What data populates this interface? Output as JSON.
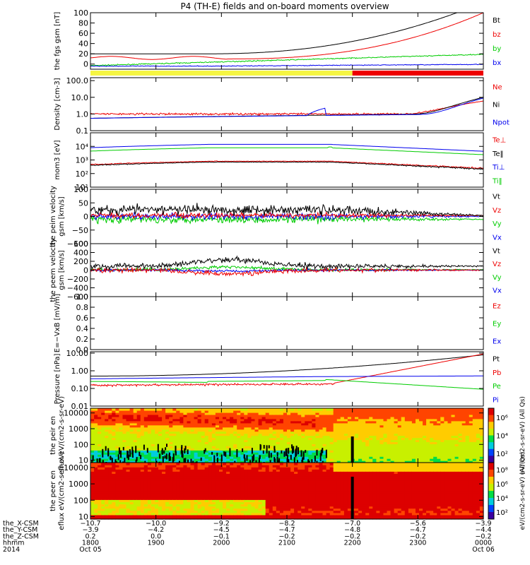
{
  "title": "P4 (TH-E) fields and on-board moments overview",
  "colors": {
    "black": "#000000",
    "red": "#ee0000",
    "green": "#00cc00",
    "blue": "#0000ee",
    "yellow": "#f5f542"
  },
  "status_bar": {
    "yellow_until": "2200",
    "red_from": "2200"
  },
  "chart_data": [
    {
      "type": "line",
      "ylabel": "the fgs gsm [nT]",
      "ylim": [
        -10,
        100
      ],
      "yticks": [
        "100",
        "80",
        "60",
        "40",
        "20",
        "0"
      ],
      "series": [
        {
          "name": "Bt"
        },
        {
          "name": "bz"
        },
        {
          "name": "by"
        },
        {
          "name": "bx"
        }
      ]
    },
    {
      "type": "line",
      "ylabel": "Density [cm-3]",
      "scale": "log",
      "ylim": [
        0.1,
        150
      ],
      "yticks": [
        "100.0",
        "10.0",
        "1.0",
        "0.1"
      ],
      "series": [
        {
          "name": "Ne"
        },
        {
          "name": "Ni"
        },
        {
          "name": "Npot"
        }
      ]
    },
    {
      "type": "line",
      "ylabel": "mom3 [eV]",
      "scale": "log",
      "ylim": [
        10,
        100000
      ],
      "yticks": [
        "10⁴",
        "10³",
        "10²",
        "10¹"
      ],
      "series": [
        {
          "name": "Te⊥"
        },
        {
          "name": "Te‖"
        },
        {
          "name": "Ti⊥"
        },
        {
          "name": "Ti‖"
        }
      ]
    },
    {
      "type": "line",
      "ylabel": "the peim velocity gsm [km/s]",
      "ylim": [
        -100,
        100
      ],
      "yticks": [
        "100",
        "50",
        "0",
        "−50",
        "−100"
      ],
      "series": [
        {
          "name": "Vt"
        },
        {
          "name": "Vz"
        },
        {
          "name": "Vy"
        },
        {
          "name": "Vx"
        }
      ]
    },
    {
      "type": "line",
      "ylabel": "the peem velocity gsm [km/s]",
      "ylim": [
        -600,
        600
      ],
      "yticks": [
        "600",
        "400",
        "200",
        "0",
        "−200",
        "−400",
        "−600"
      ],
      "series": [
        {
          "name": "Vt"
        },
        {
          "name": "Vz"
        },
        {
          "name": "Vy"
        },
        {
          "name": "Vx"
        }
      ]
    },
    {
      "type": "line",
      "ylabel": "E=−VxB [mV/m]",
      "ylim": [
        0,
        1
      ],
      "yticks": [
        "1.0",
        "0.8",
        "0.6",
        "0.4",
        "0.2",
        "0.0"
      ],
      "series": [
        {
          "name": "Ez"
        },
        {
          "name": "Ey"
        },
        {
          "name": "Ex"
        }
      ]
    },
    {
      "type": "line",
      "ylabel": "Pressure [nPa]",
      "scale": "log",
      "ylim": [
        0.01,
        12
      ],
      "yticks": [
        "10.00",
        "1.00",
        "0.10",
        "0.01"
      ],
      "series": [
        {
          "name": "Pt"
        },
        {
          "name": "Pb"
        },
        {
          "name": "Pe"
        },
        {
          "name": "Pi"
        }
      ]
    },
    {
      "type": "heatmap",
      "ylabel": "the peir en eflux eV/(cm2-s-sr-eV)",
      "scale": "log",
      "ylim": [
        7,
        20000
      ],
      "yticks": [
        "10000",
        "1000",
        "100",
        "10"
      ],
      "colorbar_label": "eV/(cm2-s-sr-eV) (All Qs)",
      "colorbar_ticks": [
        "10⁶",
        "10⁴",
        "10²"
      ]
    },
    {
      "type": "heatmap",
      "ylabel": "the peer en eflux eV/(cm2-s-sr-eV)",
      "scale": "log",
      "ylim": [
        7,
        20000
      ],
      "yticks": [
        "10000",
        "1000",
        "100",
        "10"
      ],
      "colorbar_label": "eV/(cm2-s-sr-eV) (All Qs)",
      "colorbar_ticks": [
        "10⁸",
        "10⁶",
        "10⁴",
        "10²"
      ]
    }
  ],
  "footer": {
    "rows": [
      {
        "label": "the_X-CSM",
        "values": [
          "−10.7",
          "−10.0",
          "−9.2",
          "−8.2",
          "−7.0",
          "−5.6",
          "−3.9"
        ]
      },
      {
        "label": "the_Y-CSM",
        "values": [
          "−3.9",
          "−4.2",
          "−4.5",
          "−4.7",
          "−4.8",
          "−4.7",
          "−4.4"
        ]
      },
      {
        "label": "the_Z-CSM",
        "values": [
          "0.2",
          "0.0",
          "−0.1",
          "−0.2",
          "−0.2",
          "−0.2",
          "−0.2"
        ]
      },
      {
        "label": "hhmm",
        "values": [
          "1800",
          "1900",
          "2000",
          "2100",
          "2200",
          "2300",
          "0000"
        ]
      }
    ],
    "year": "2014",
    "dates": [
      "Oct 05",
      "",
      "",
      "",
      "",
      "",
      "Oct 06"
    ]
  }
}
